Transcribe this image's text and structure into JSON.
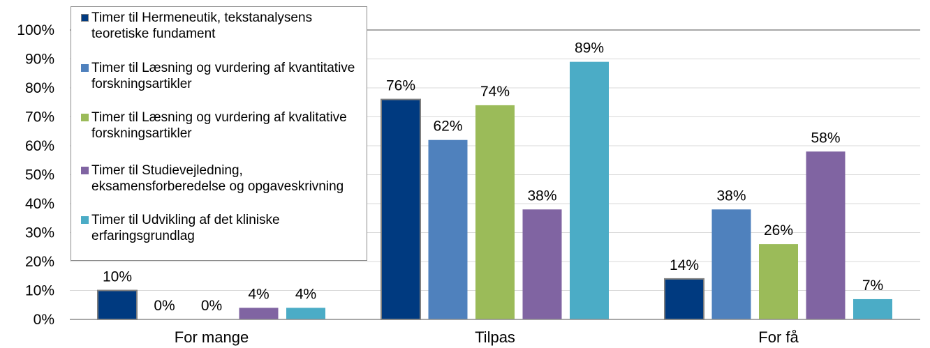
{
  "chart_data": {
    "type": "bar",
    "categories": [
      "For mange",
      "Tilpas",
      "For få"
    ],
    "series": [
      {
        "name": "Timer til Hermeneutik, tekstanalysens teoretiske fundament",
        "color": "#003a80",
        "values": [
          10,
          76,
          14
        ],
        "labels": [
          "10%",
          "76%",
          "14%"
        ]
      },
      {
        "name": "Timer til Læsning og vurdering af kvantitative forskningsartikler",
        "color": "#4f81bd",
        "values": [
          0,
          62,
          38
        ],
        "labels": [
          "0%",
          "62%",
          "38%"
        ]
      },
      {
        "name": "Timer til Læsning og vurdering af kvalitative forskningsartikler",
        "color": "#9bbb59",
        "values": [
          0,
          74,
          26
        ],
        "labels": [
          "0%",
          "74%",
          "26%"
        ]
      },
      {
        "name": "Timer til Studievejledning, eksamensforberedelse og opgaveskrivning",
        "color": "#8064a2",
        "values": [
          4,
          38,
          58
        ],
        "labels": [
          "4%",
          "38%",
          "58%"
        ]
      },
      {
        "name": "Timer til Udvikling af det kliniske erfaringsgrundlag",
        "color": "#4bacc6",
        "values": [
          4,
          89,
          7
        ],
        "labels": [
          "4%",
          "89%",
          "7%"
        ]
      }
    ],
    "yticks": [
      "0%",
      "10%",
      "20%",
      "30%",
      "40%",
      "50%",
      "60%",
      "70%",
      "80%",
      "90%",
      "100%"
    ],
    "ylim": [
      0,
      100
    ],
    "grid": true,
    "legend_position": "top-left"
  }
}
